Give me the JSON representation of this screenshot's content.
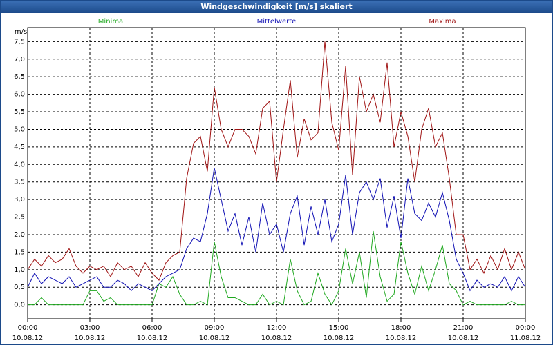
{
  "chart_data": {
    "type": "line",
    "title": "Windgeschwindigkeit [m/s] skaliert",
    "ylabel": "m/s",
    "x": [
      0,
      20,
      40,
      60,
      80,
      100,
      120,
      140,
      160,
      180,
      200,
      220,
      240,
      260,
      280,
      300,
      320,
      340,
      360,
      380,
      400,
      420,
      440,
      460,
      480,
      500,
      520,
      540,
      560,
      580,
      600,
      620,
      640,
      660,
      680,
      700,
      720,
      740,
      760,
      780,
      800,
      820,
      840,
      860,
      880,
      900,
      920,
      940,
      960,
      980,
      1000,
      1020,
      1040,
      1060,
      1080,
      1100,
      1120,
      1140,
      1160,
      1180,
      1200,
      1220,
      1240,
      1260,
      1280,
      1300,
      1320,
      1340,
      1360,
      1380,
      1400,
      1420,
      1440
    ],
    "xlim": [
      0,
      1440
    ],
    "xticks": [
      {
        "value": 0,
        "label": "00:00"
      },
      {
        "value": 180,
        "label": "03:00"
      },
      {
        "value": 360,
        "label": "06:00"
      },
      {
        "value": 540,
        "label": "09:00"
      },
      {
        "value": 720,
        "label": "12:00"
      },
      {
        "value": 900,
        "label": "15:00"
      },
      {
        "value": 1080,
        "label": "18:00"
      },
      {
        "value": 1260,
        "label": "21:00"
      },
      {
        "value": 1440,
        "label": "00:00"
      }
    ],
    "xtick_dates": [
      "10.08.12",
      "10.08.12",
      "10.08.12",
      "10.08.12",
      "10.08.12",
      "10.08.12",
      "10.08.12",
      "10.08.12",
      "11.08.12"
    ],
    "ylim": [
      -0.4,
      7.9
    ],
    "yticks": [
      {
        "value": 0,
        "label": "0,0"
      },
      {
        "value": 0.5,
        "label": "0,5"
      },
      {
        "value": 1,
        "label": "1,0"
      },
      {
        "value": 1.5,
        "label": "1,5"
      },
      {
        "value": 2,
        "label": "2,0"
      },
      {
        "value": 2.5,
        "label": "2,5"
      },
      {
        "value": 3,
        "label": "3,0"
      },
      {
        "value": 3.5,
        "label": "3,5"
      },
      {
        "value": 4,
        "label": "4,0"
      },
      {
        "value": 4.5,
        "label": "4,5"
      },
      {
        "value": 5,
        "label": "5,0"
      },
      {
        "value": 5.5,
        "label": "5,5"
      },
      {
        "value": 6,
        "label": "6,0"
      },
      {
        "value": 6.5,
        "label": "6,5"
      },
      {
        "value": 7,
        "label": "7,0"
      },
      {
        "value": 7.5,
        "label": "7,5"
      }
    ],
    "grid": true,
    "series": [
      {
        "name": "Minima",
        "color": "#1fa81f",
        "values": [
          0,
          0,
          0.2,
          0,
          0,
          0,
          0,
          0,
          0,
          0.4,
          0.4,
          0.1,
          0.2,
          0,
          0,
          0,
          0,
          0,
          0,
          0.6,
          0.5,
          0.8,
          0.3,
          0,
          0,
          0.1,
          0,
          1.8,
          0.8,
          0.2,
          0.2,
          0.1,
          0,
          0,
          0.3,
          0,
          0.1,
          0,
          1.3,
          0.4,
          0,
          0.1,
          0.9,
          0.3,
          0,
          0.4,
          1.6,
          0.6,
          1.5,
          0.2,
          2.1,
          0.8,
          0.1,
          0.3,
          1.8,
          0.9,
          0.3,
          1.1,
          0.4,
          1.0,
          1.7,
          0.6,
          0.4,
          0,
          0.1,
          0,
          0,
          0,
          0,
          0,
          0.1,
          0,
          0
        ]
      },
      {
        "name": "Mittelwerte",
        "color": "#1010b4",
        "values": [
          0.5,
          0.9,
          0.6,
          0.8,
          0.7,
          0.6,
          0.8,
          0.5,
          0.6,
          0.7,
          0.8,
          0.5,
          0.5,
          0.7,
          0.6,
          0.4,
          0.6,
          0.5,
          0.4,
          0.6,
          0.8,
          0.9,
          1.0,
          1.6,
          1.9,
          1.8,
          2.6,
          3.9,
          3.0,
          2.1,
          2.6,
          1.7,
          2.5,
          1.5,
          2.9,
          2.0,
          2.3,
          1.5,
          2.6,
          3.1,
          1.7,
          2.8,
          2.0,
          3.0,
          1.8,
          2.3,
          3.7,
          2.0,
          3.2,
          3.5,
          3.0,
          3.6,
          2.2,
          3.1,
          1.9,
          3.6,
          2.6,
          2.4,
          2.9,
          2.5,
          3.2,
          2.4,
          1.3,
          0.9,
          0.4,
          0.7,
          0.5,
          0.6,
          0.5,
          0.8,
          0.4,
          0.8,
          0.5
        ]
      },
      {
        "name": "Maxima",
        "color": "#a01414",
        "values": [
          1.0,
          1.3,
          1.1,
          1.4,
          1.2,
          1.3,
          1.6,
          1.1,
          0.9,
          1.1,
          1.0,
          1.1,
          0.8,
          1.2,
          1.0,
          1.1,
          0.8,
          1.2,
          0.9,
          0.7,
          1.2,
          1.4,
          1.5,
          3.6,
          4.6,
          4.8,
          3.8,
          6.2,
          5.0,
          4.5,
          5.0,
          5.0,
          4.8,
          4.3,
          5.6,
          5.8,
          3.5,
          5.0,
          6.4,
          4.2,
          5.3,
          4.7,
          4.9,
          7.5,
          5.2,
          4.4,
          6.8,
          3.7,
          6.5,
          5.5,
          6.0,
          5.2,
          6.9,
          4.5,
          5.5,
          4.8,
          3.5,
          5.0,
          5.6,
          4.5,
          4.9,
          3.6,
          2.0,
          2.0,
          1.0,
          1.3,
          0.9,
          1.4,
          1.0,
          1.6,
          1.0,
          1.5,
          1.0
        ]
      }
    ]
  }
}
